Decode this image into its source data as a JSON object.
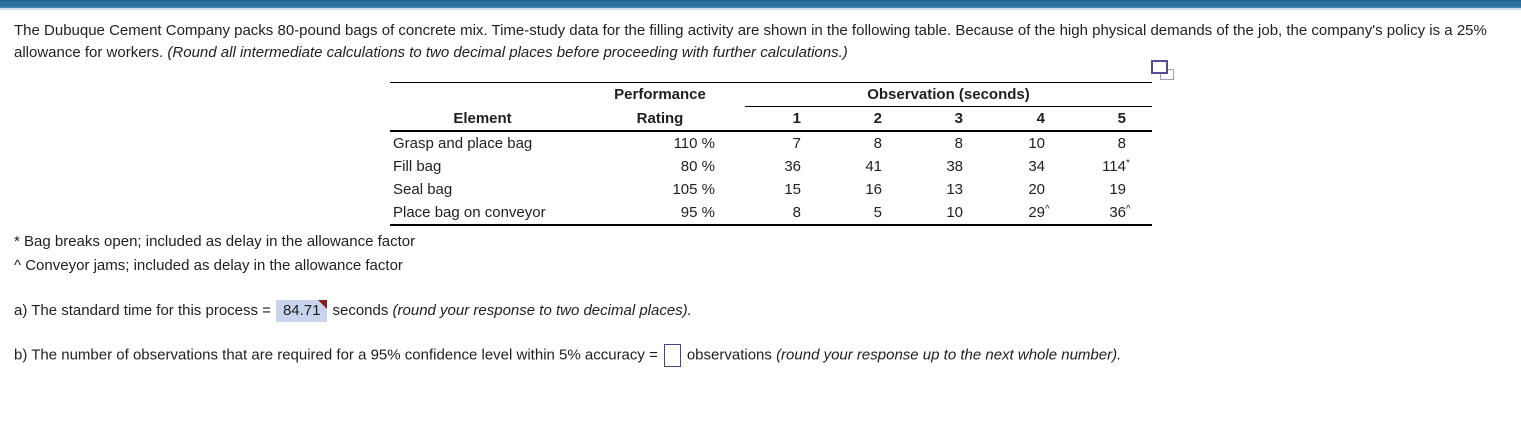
{
  "colors": {
    "top_bar": "#2b6f9f",
    "top_bar_edge": "#cfe0ec",
    "answer_highlight_bg": "#c9d3ee",
    "answer_flag_red": "#8e1b15",
    "input_border": "#4a3e8f",
    "icon_front_purple": "#564b96",
    "icon_back_purple": "#a596cc",
    "table_border": "#000000",
    "text": "#1f1f1f"
  },
  "intro": {
    "text": "The Dubuque Cement Company packs 80-pound bags of concrete mix. Time-study data for the filling activity are shown in the following table. Because of the high physical demands of the job, the company's policy is a 25% allowance for workers.",
    "note": "(Round all intermediate calculations to two decimal places before proceeding with further calculations.)"
  },
  "icons": {
    "copy_table": "copy-table-icon"
  },
  "table": {
    "headers": {
      "element": "Element",
      "performance_line1": "Performance",
      "performance_line2": "Rating",
      "observation_group": "Observation (seconds)",
      "observation_cols": [
        "1",
        "2",
        "3",
        "4",
        "5"
      ]
    },
    "rows": [
      {
        "element": "Grasp and place bag",
        "rating": "110 %",
        "obs": [
          {
            "v": "7"
          },
          {
            "v": "8"
          },
          {
            "v": "8"
          },
          {
            "v": "10"
          },
          {
            "v": "8"
          }
        ]
      },
      {
        "element": "Fill bag",
        "rating": "80 %",
        "obs": [
          {
            "v": "36"
          },
          {
            "v": "41"
          },
          {
            "v": "38"
          },
          {
            "v": "34"
          },
          {
            "v": "114",
            "sup": "*"
          }
        ]
      },
      {
        "element": "Seal bag",
        "rating": "105 %",
        "obs": [
          {
            "v": "15"
          },
          {
            "v": "16"
          },
          {
            "v": "13"
          },
          {
            "v": "20"
          },
          {
            "v": "19"
          }
        ]
      },
      {
        "element": "Place bag on conveyor",
        "rating": "95 %",
        "obs": [
          {
            "v": "8"
          },
          {
            "v": "5"
          },
          {
            "v": "10"
          },
          {
            "v": "29",
            "sup": "^"
          },
          {
            "v": "36",
            "sup": "^"
          }
        ]
      }
    ]
  },
  "footnotes": [
    "* Bag breaks open; included as delay in the allowance factor",
    "^ Conveyor jams; included as delay in the allowance factor"
  ],
  "part_a": {
    "prefix": "a) The standard time for this process =",
    "answer": "84.71",
    "unit": "seconds",
    "note": "(round your response to two decimal places)."
  },
  "part_b": {
    "prefix": "b) The number of observations that are required for a 95% confidence level within 5% accuracy =",
    "input_value": "",
    "unit": "observations",
    "note": "(round your response up to the next whole number)."
  }
}
